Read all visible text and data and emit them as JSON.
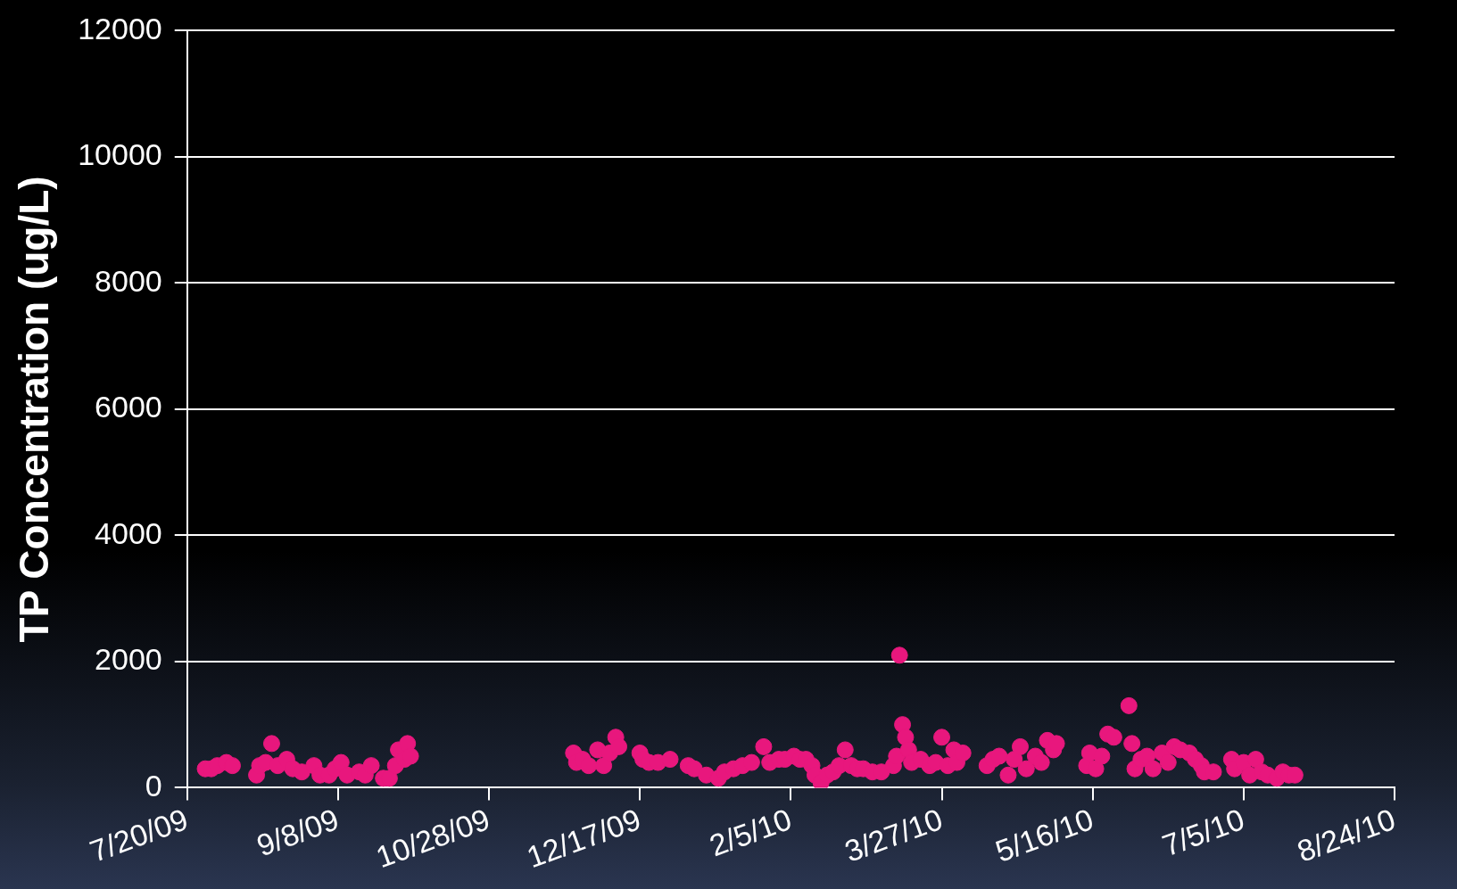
{
  "chart_data": {
    "type": "scatter",
    "ylabel": "TP Concentration (ug/L)",
    "xlim": [
      "2009-07-20",
      "2010-08-24"
    ],
    "xticks": [
      {
        "value": "2009-07-20",
        "label": "7/20/09"
      },
      {
        "value": "2009-09-08",
        "label": "9/8/09"
      },
      {
        "value": "2009-10-28",
        "label": "10/28/09"
      },
      {
        "value": "2009-12-17",
        "label": "12/17/09"
      },
      {
        "value": "2010-02-05",
        "label": "2/5/10"
      },
      {
        "value": "2010-03-27",
        "label": "3/27/10"
      },
      {
        "value": "2010-05-16",
        "label": "5/16/10"
      },
      {
        "value": "2010-07-05",
        "label": "7/5/10"
      },
      {
        "value": "2010-08-24",
        "label": "8/24/10"
      }
    ],
    "ylim": [
      0,
      12000
    ],
    "yticks": [
      0,
      2000,
      4000,
      6000,
      8000,
      10000,
      12000
    ],
    "grid": "y",
    "legend": false,
    "marker": "circle",
    "series": [
      {
        "color": "#e8177d",
        "x": [
          "2009-07-26",
          "2009-07-28",
          "2009-07-30",
          "2009-08-02",
          "2009-08-04",
          "2009-08-12",
          "2009-08-13",
          "2009-08-15",
          "2009-08-17",
          "2009-08-19",
          "2009-08-22",
          "2009-08-24",
          "2009-08-27",
          "2009-08-31",
          "2009-09-02",
          "2009-09-05",
          "2009-09-07",
          "2009-09-09",
          "2009-09-11",
          "2009-09-15",
          "2009-09-17",
          "2009-09-19",
          "2009-09-23",
          "2009-09-25",
          "2009-09-27",
          "2009-09-28",
          "2009-09-30",
          "2009-10-01",
          "2009-10-02",
          "2009-11-25",
          "2009-11-26",
          "2009-11-28",
          "2009-11-30",
          "2009-12-03",
          "2009-12-05",
          "2009-12-07",
          "2009-12-09",
          "2009-12-10",
          "2009-12-17",
          "2009-12-18",
          "2009-12-20",
          "2009-12-23",
          "2009-12-27",
          "2010-01-02",
          "2010-01-04",
          "2010-01-08",
          "2010-01-12",
          "2010-01-14",
          "2010-01-17",
          "2010-01-20",
          "2010-01-23",
          "2010-01-27",
          "2010-01-29",
          "2010-02-01",
          "2010-02-03",
          "2010-02-06",
          "2010-02-08",
          "2010-02-10",
          "2010-02-12",
          "2010-02-13",
          "2010-02-15",
          "2010-02-17",
          "2010-02-19",
          "2010-02-21",
          "2010-02-23",
          "2010-02-25",
          "2010-02-27",
          "2010-03-01",
          "2010-03-04",
          "2010-03-07",
          "2010-03-11",
          "2010-03-12",
          "2010-03-13",
          "2010-03-14",
          "2010-03-15",
          "2010-03-16",
          "2010-03-17",
          "2010-03-20",
          "2010-03-23",
          "2010-03-25",
          "2010-03-27",
          "2010-03-29",
          "2010-03-31",
          "2010-04-01",
          "2010-04-03",
          "2010-04-11",
          "2010-04-13",
          "2010-04-15",
          "2010-04-18",
          "2010-04-20",
          "2010-04-22",
          "2010-04-24",
          "2010-04-27",
          "2010-04-29",
          "2010-05-01",
          "2010-05-03",
          "2010-05-04",
          "2010-05-14",
          "2010-05-15",
          "2010-05-17",
          "2010-05-19",
          "2010-05-21",
          "2010-05-23",
          "2010-05-28",
          "2010-05-29",
          "2010-05-30",
          "2010-06-01",
          "2010-06-03",
          "2010-06-05",
          "2010-06-08",
          "2010-06-10",
          "2010-06-12",
          "2010-06-14",
          "2010-06-17",
          "2010-06-19",
          "2010-06-21",
          "2010-06-22",
          "2010-06-25",
          "2010-07-01",
          "2010-07-02",
          "2010-07-05",
          "2010-07-07",
          "2010-07-09",
          "2010-07-11",
          "2010-07-13",
          "2010-07-16",
          "2010-07-18",
          "2010-07-20",
          "2010-07-22"
        ],
        "values": [
          300,
          300,
          350,
          400,
          350,
          200,
          350,
          400,
          700,
          350,
          450,
          300,
          250,
          350,
          200,
          200,
          300,
          400,
          200,
          250,
          200,
          350,
          150,
          150,
          350,
          600,
          450,
          700,
          500,
          550,
          400,
          450,
          350,
          600,
          350,
          550,
          800,
          650,
          550,
          450,
          400,
          400,
          450,
          350,
          300,
          200,
          150,
          250,
          300,
          350,
          400,
          650,
          400,
          450,
          450,
          500,
          450,
          450,
          350,
          200,
          80,
          200,
          250,
          350,
          600,
          350,
          300,
          300,
          250,
          250,
          350,
          500,
          2100,
          1000,
          800,
          600,
          400,
          450,
          350,
          400,
          800,
          350,
          600,
          400,
          550,
          350,
          450,
          500,
          200,
          450,
          650,
          300,
          500,
          400,
          750,
          600,
          700,
          350,
          550,
          300,
          500,
          850,
          800,
          1300,
          700,
          300,
          450,
          500,
          300,
          550,
          400,
          650,
          600,
          550,
          450,
          350,
          250,
          250,
          450,
          300,
          400,
          200,
          450,
          250,
          200,
          150,
          250,
          200,
          200
        ]
      }
    ]
  }
}
